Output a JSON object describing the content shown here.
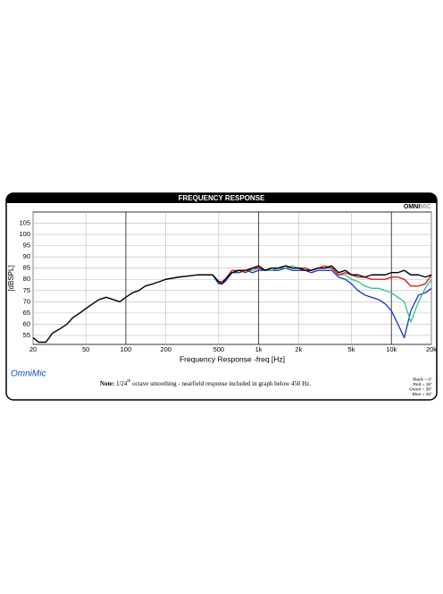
{
  "chart_data": {
    "type": "line",
    "title": "FREQUENCY RESPONSE",
    "logo": {
      "part1": "OMNI",
      "part2": "MIC"
    },
    "ylabel": "[dBSPL]",
    "xlabel": "Frequency Response -freq [Hz]",
    "brand": "OmniMic",
    "note": {
      "bold": "Note:",
      "fraction": "1/24",
      "superscript": "th",
      "text": "octave smoothing - nearfield response included in graph below 450 Hz."
    },
    "xscale": "log",
    "grid": true,
    "xlim": [
      20,
      20000
    ],
    "ylim": [
      51,
      110
    ],
    "xticks": [
      20,
      50,
      100,
      200,
      500,
      {
        "value": 1000,
        "label": "1k"
      },
      {
        "value": 2000,
        "label": "2k"
      },
      {
        "value": 5000,
        "label": "5k"
      },
      {
        "value": 10000,
        "label": "10k"
      },
      {
        "value": 20000,
        "label": "20k"
      }
    ],
    "yticks": [
      55,
      60,
      65,
      70,
      75,
      80,
      85,
      90,
      95,
      100,
      105
    ],
    "x": [
      20,
      22,
      25,
      28,
      32,
      36,
      40,
      45,
      50,
      56,
      63,
      71,
      80,
      90,
      100,
      112,
      125,
      140,
      160,
      180,
      200,
      250,
      300,
      350,
      400,
      450,
      500,
      530,
      560,
      630,
      710,
      800,
      900,
      1000,
      1120,
      1250,
      1400,
      1600,
      1800,
      2000,
      2240,
      2500,
      2800,
      3150,
      3550,
      4000,
      4500,
      5000,
      5600,
      6300,
      7100,
      8000,
      9000,
      10000,
      11200,
      12500,
      14000,
      16000,
      18000,
      20000
    ],
    "series": [
      {
        "name": "Black = 0°",
        "color": "#000000",
        "values": [
          54,
          52,
          52,
          56,
          58,
          60,
          63,
          65,
          67,
          69,
          71,
          72,
          71,
          70,
          72,
          74,
          75,
          77,
          78,
          79,
          80,
          81,
          81.5,
          82,
          82,
          82,
          79,
          78,
          80,
          83,
          84,
          84,
          85,
          86,
          84,
          85,
          85,
          86,
          85,
          85,
          84,
          84,
          85,
          85,
          86,
          83,
          84,
          82,
          82,
          81,
          82,
          82,
          82,
          83,
          83,
          84,
          82,
          82,
          81,
          82
        ]
      },
      {
        "name": "Red = 15°",
        "color": "#d01010",
        "values": [
          null,
          null,
          null,
          null,
          null,
          null,
          null,
          null,
          null,
          null,
          null,
          null,
          null,
          null,
          null,
          null,
          null,
          null,
          null,
          null,
          null,
          null,
          null,
          null,
          null,
          82,
          79,
          79,
          80,
          84,
          84,
          83,
          85,
          85,
          84,
          85,
          85,
          86,
          85,
          85,
          85,
          84,
          85,
          86,
          85,
          82,
          83,
          82,
          81,
          81,
          80,
          80,
          80,
          81,
          81,
          80,
          77,
          77,
          78,
          82
        ]
      },
      {
        "name": "Green = 30°",
        "color": "#2ec28a",
        "values": [
          null,
          null,
          null,
          null,
          null,
          null,
          null,
          null,
          null,
          null,
          null,
          null,
          null,
          null,
          null,
          null,
          null,
          null,
          null,
          null,
          null,
          null,
          null,
          null,
          null,
          82,
          79,
          78,
          80,
          83,
          84,
          84,
          84,
          85,
          84,
          84,
          85,
          85,
          86,
          85,
          84,
          84,
          85,
          85,
          85,
          82,
          82,
          80,
          79,
          77,
          76,
          76,
          75,
          74,
          72,
          70,
          61,
          70,
          76,
          80
        ]
      },
      {
        "name": "Blue = 45°",
        "color": "#1a2fd0",
        "values": [
          null,
          null,
          null,
          null,
          null,
          null,
          null,
          null,
          null,
          null,
          null,
          null,
          null,
          null,
          null,
          null,
          null,
          null,
          null,
          null,
          null,
          null,
          null,
          null,
          null,
          82,
          78,
          78,
          79,
          83,
          83,
          84,
          83,
          84,
          84,
          84,
          84,
          85,
          84,
          84,
          84,
          83,
          84,
          84,
          84,
          81,
          80,
          78,
          75,
          73,
          72,
          71,
          69,
          66,
          60,
          54,
          66,
          73,
          74,
          76
        ]
      }
    ]
  }
}
